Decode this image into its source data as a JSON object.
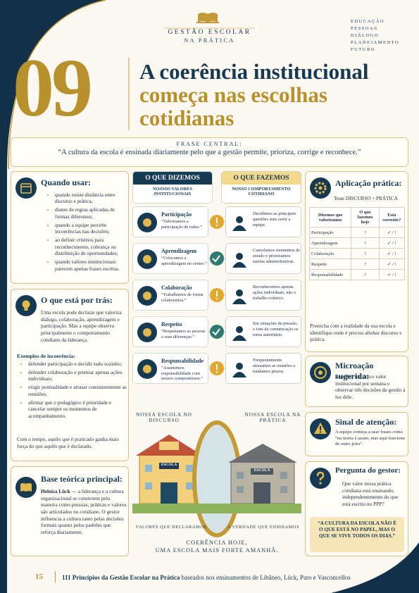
{
  "header": {
    "brand": "GESTÃO ESCOLAR",
    "brand_sub": "NA PRÁTICA",
    "keywords": [
      "EDUCAÇÃO",
      "PESSOAS",
      "DIÁLOGO",
      "PLANEJAMENTO",
      "FUTURO"
    ]
  },
  "number": "09",
  "title": [
    "A coerência institucional",
    "começa nas escolhas",
    "cotidianas"
  ],
  "central": {
    "label": "FRASE CENTRAL:",
    "quote": "“A cultura da escola é ensinada diariamente pelo que a gestão permite, prioriza, corrige e reconhece.”"
  },
  "when": {
    "title": "Quando usar:",
    "items": [
      "quando existe distância entre discurso e prática;",
      "diante de regras aplicadas de formas diferentes;",
      "quando a equipe percebe incoerências nas decisões;",
      "ao definir critérios para reconhecimento, cobrança ou distribuição de oportunidades;",
      "quando valores institucionais parecem apenas frases escritas."
    ]
  },
  "behind": {
    "title": "O que está por trás:",
    "text": "Uma escola pode declarar que valoriza diálogo, colaboração, aprendizagem e participação. Mas a equipe observa principalmente o comportamento cotidiano da liderança.",
    "examples_title": "Exemplos de incoerência:",
    "items": [
      "defender participação e decidir tudo sozinho;",
      "defender colaboração e premiar apenas ações individuais;",
      "exigir pontualidade e atrasar constantemente as reuniões;",
      "afirmar que o pedagógico é prioridade e cancelar sempre os momentos de acompanhamento."
    ],
    "closing": "Com o tempo, aquilo que é praticado ganha mais força do que aquilo que é declarado."
  },
  "theory": {
    "title": "Base teórica principal:",
    "author": "Heloísa Lück",
    "text": " — a liderança e a cultura organizacional se constroem pela maneira como pessoas, práticas e valores são articulados no cotidiano. O gestor influencia a cultura tanto pelas decisões formais quanto pelos padrões que reforça diariamente."
  },
  "compare": {
    "say_title": "O QUE DIZEMOS",
    "say_sub": "NOSSOS VALORES INSTITUCIONAIS",
    "do_title": "O QUE FAZEMOS",
    "do_sub": "NOSSO COMPORTAMENTO COTIDIANO",
    "rows": [
      {
        "value": "Participação",
        "quote": "“Valorizamos a participação de todos.”",
        "practice": "Decidimos as principais questões sem ouvir a equipe."
      },
      {
        "value": "Aprendizagem",
        "quote": "“Colocamos a aprendizagem no centro.”",
        "practice": "Cancelamos momentos de estudo e priorizamos tarefas administrativas."
      },
      {
        "value": "Colaboração",
        "quote": "“Trabalhamos de forma colaborativa.”",
        "practice": "Reconhecemos apenas ações individuais, não o trabalho coletivo."
      },
      {
        "value": "Respeito",
        "quote": "“Respeitamos as pessoas e suas diferenças.”",
        "practice": "Em situações de pressão, o tom da comunicação se torna autoritário."
      },
      {
        "value": "Responsabilidade",
        "quote": "“Assumimos responsabilidade com nossos compromissos.”",
        "practice": "Frequentemente atrasamos as reuniões e mudamos prazos."
      }
    ]
  },
  "illustration": {
    "left_title": "NOSSA ESCOLA NO DISCURSO",
    "right_title": "NOSSA ESCOLA NA PRÁTICA",
    "left_sign": "ESCOLA",
    "right_sign": "ESCOLA",
    "left_caption": "VALORES QUE DECLARAMOS",
    "right_caption": "A VERDADE QUE ENSINAMOS",
    "motto": [
      "COERÊNCIA HOJE,",
      "UMA ESCOLA MAIS FORTE AMANHÃ."
    ]
  },
  "application": {
    "title": "Aplicação prática:",
    "subtitle": "Teste DISCURSO × PRÁTICA",
    "columns": [
      "Dizemos que valorizamos",
      "O que fazemos hoje",
      "Está coerente?"
    ],
    "rows": [
      [
        "Participação",
        "?",
        "✓ / !"
      ],
      [
        "Aprendizagem",
        "?",
        "✓ / !"
      ],
      [
        "Colaboração",
        "?",
        "✓ / !"
      ],
      [
        "Respeito",
        "?",
        "✓ / !"
      ],
      [
        "Responsabilidade",
        "?",
        "✓ / !"
      ]
    ],
    "note": "Preencha com a realidade da sua escola e identifique onde é preciso alinhar discurso e prática."
  },
  "micro": {
    "title": "Microação sugerida:",
    "text": "Escolher um único valor institucional por semana e observar três decisões da gestão à luz dele."
  },
  "attention": {
    "title": "Sinal de atenção:",
    "text": "A equipe começa a usar frases como “na teoria é assim, mas aqui funciona de outro jeito”."
  },
  "question": {
    "title": "Pergunta do gestor:",
    "text": "Que valor nossa prática cotidiana está ensinando, independentemente do que está escrito no PPP?"
  },
  "highlight": "“A CULTURA DA ESCOLA NÃO É O QUE ESTÁ NO PAPEL, MAS O QUE SE VIVE TODOS OS DIAS.”",
  "footer": {
    "page": "15",
    "book": "111 Princípios da Gestão Escolar na Prática",
    "rest": " baseados nos ensinamentos de Libâneo, Lück, Paro e Vasconcellos"
  }
}
